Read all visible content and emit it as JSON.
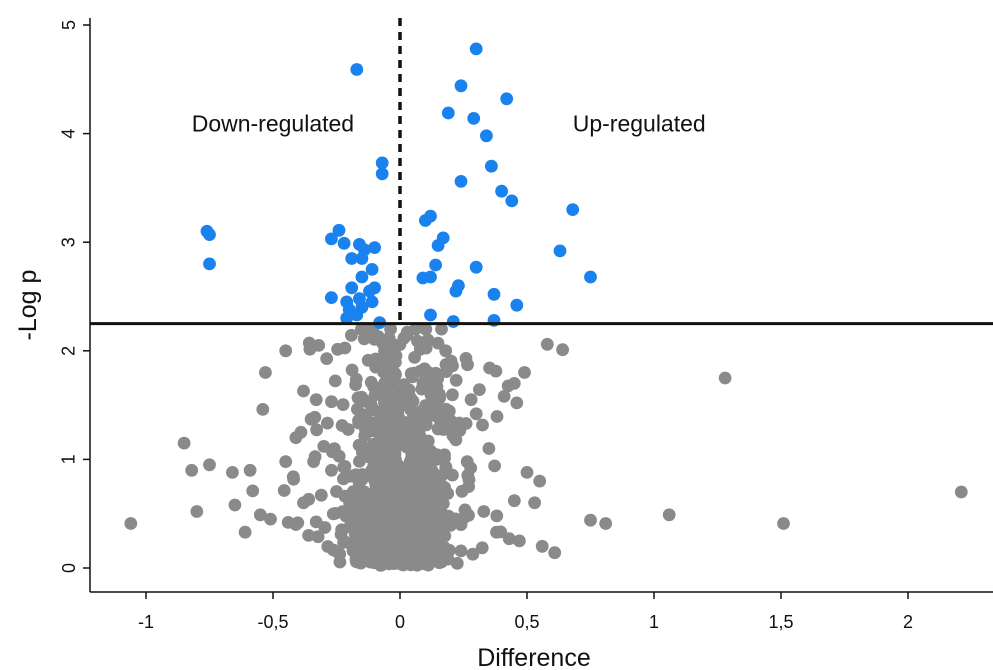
{
  "chart_data": {
    "type": "scatter",
    "title": "",
    "xlabel": "Difference",
    "ylabel": "-Log p",
    "xlim": [
      -1.2,
      2.35
    ],
    "ylim": [
      -0.25,
      5.1
    ],
    "x_ticks": [
      -1,
      -0.5,
      0,
      0.5,
      1,
      1.5,
      2
    ],
    "x_tick_labels": [
      "-1",
      "-0,5",
      "0",
      "0,5",
      "1",
      "1,5",
      "2"
    ],
    "y_ticks": [
      0,
      1,
      2,
      3,
      4,
      5
    ],
    "y_tick_labels": [
      "0",
      "1",
      "2",
      "3",
      "4",
      "5"
    ],
    "grid": false,
    "legend": "none",
    "annotations": [
      {
        "text": "Down-regulated",
        "x": -0.82,
        "y": 4.02
      },
      {
        "text": "Up-regulated",
        "x": 0.68,
        "y": 4.02
      }
    ],
    "threshold_y": 2.25,
    "threshold_x": 0,
    "colors": {
      "significant": "#1a82ef",
      "nonsignificant": "#8a8a8a",
      "lines": "#111111"
    },
    "series": [
      {
        "group": "significant",
        "color": "#1a82ef",
        "points": [
          [
            0.3,
            4.78
          ],
          [
            0.24,
            4.44
          ],
          [
            0.42,
            4.32
          ],
          [
            0.19,
            4.19
          ],
          [
            0.29,
            4.14
          ],
          [
            0.34,
            3.98
          ],
          [
            0.36,
            3.7
          ],
          [
            0.24,
            3.56
          ],
          [
            0.4,
            3.47
          ],
          [
            0.44,
            3.38
          ],
          [
            0.68,
            3.3
          ],
          [
            0.63,
            2.92
          ],
          [
            0.75,
            2.68
          ],
          [
            0.46,
            2.42
          ],
          [
            0.37,
            2.52
          ],
          [
            0.3,
            2.77
          ],
          [
            0.23,
            2.6
          ],
          [
            0.22,
            2.55
          ],
          [
            0.12,
            3.24
          ],
          [
            0.1,
            3.2
          ],
          [
            0.17,
            3.04
          ],
          [
            0.15,
            2.97
          ],
          [
            0.14,
            2.79
          ],
          [
            0.12,
            2.68
          ],
          [
            0.09,
            2.67
          ],
          [
            0.21,
            2.27
          ],
          [
            0.12,
            2.33
          ],
          [
            0.37,
            2.28
          ],
          [
            -0.17,
            4.59
          ],
          [
            -0.07,
            3.73
          ],
          [
            -0.07,
            3.63
          ],
          [
            -0.76,
            3.1
          ],
          [
            -0.75,
            3.07
          ],
          [
            -0.75,
            2.8
          ],
          [
            -0.24,
            3.11
          ],
          [
            -0.27,
            3.03
          ],
          [
            -0.22,
            2.99
          ],
          [
            -0.16,
            2.98
          ],
          [
            -0.14,
            2.93
          ],
          [
            -0.1,
            2.95
          ],
          [
            -0.19,
            2.85
          ],
          [
            -0.15,
            2.85
          ],
          [
            -0.11,
            2.75
          ],
          [
            -0.27,
            2.49
          ],
          [
            -0.19,
            2.58
          ],
          [
            -0.15,
            2.68
          ],
          [
            -0.12,
            2.55
          ],
          [
            -0.1,
            2.58
          ],
          [
            -0.21,
            2.45
          ],
          [
            -0.16,
            2.48
          ],
          [
            -0.11,
            2.45
          ],
          [
            -0.2,
            2.38
          ],
          [
            -0.17,
            2.33
          ],
          [
            -0.15,
            2.4
          ],
          [
            -0.08,
            2.26
          ],
          [
            -0.21,
            2.3
          ]
        ]
      },
      {
        "group": "nonsignificant",
        "color": "#8a8a8a",
        "points": [
          [
            -1.06,
            0.41
          ],
          [
            -0.85,
            1.15
          ],
          [
            -0.82,
            0.9
          ],
          [
            -0.8,
            0.52
          ],
          [
            -0.75,
            0.95
          ],
          [
            -0.66,
            0.88
          ],
          [
            -0.65,
            0.58
          ],
          [
            -0.61,
            0.33
          ],
          [
            -0.59,
            0.9
          ],
          [
            -0.58,
            0.71
          ],
          [
            -0.55,
            0.49
          ],
          [
            -0.54,
            1.46
          ],
          [
            -0.53,
            1.8
          ],
          [
            -0.51,
            0.45
          ],
          [
            -0.45,
            2.0
          ],
          [
            -0.45,
            0.98
          ],
          [
            -0.44,
            0.42
          ],
          [
            -0.42,
            0.84
          ],
          [
            -0.41,
            1.2
          ],
          [
            -0.39,
            1.25
          ],
          [
            -0.38,
            0.6
          ],
          [
            -0.38,
            1.63
          ],
          [
            -0.36,
            0.3
          ],
          [
            -0.35,
            1.37
          ],
          [
            -0.34,
            0.98
          ],
          [
            -0.33,
            1.55
          ],
          [
            -0.32,
            2.05
          ],
          [
            -0.31,
            0.67
          ],
          [
            -0.3,
            1.12
          ],
          [
            0.08,
            0.62
          ],
          [
            0.11,
            2.1
          ],
          [
            0.12,
            1.72
          ],
          [
            0.15,
            1.28
          ],
          [
            0.18,
            0.92
          ],
          [
            0.18,
            2.0
          ],
          [
            0.22,
            1.18
          ],
          [
            0.24,
            0.4
          ],
          [
            0.26,
            1.93
          ],
          [
            0.27,
            0.75
          ],
          [
            0.28,
            1.55
          ],
          [
            0.3,
            1.42
          ],
          [
            0.33,
            0.52
          ],
          [
            0.35,
            1.1
          ],
          [
            0.38,
            0.33
          ],
          [
            0.41,
            1.58
          ],
          [
            0.43,
            0.27
          ],
          [
            0.45,
            0.62
          ],
          [
            0.45,
            1.7
          ],
          [
            0.46,
            1.52
          ],
          [
            0.47,
            0.25
          ],
          [
            0.49,
            1.8
          ],
          [
            0.5,
            0.88
          ],
          [
            0.53,
            0.6
          ],
          [
            0.55,
            0.8
          ],
          [
            0.56,
            0.2
          ],
          [
            0.58,
            2.06
          ],
          [
            0.64,
            2.01
          ],
          [
            0.75,
            0.44
          ],
          [
            0.81,
            0.41
          ],
          [
            1.06,
            0.49
          ],
          [
            1.28,
            1.75
          ],
          [
            1.51,
            0.41
          ],
          [
            2.21,
            0.7
          ]
        ]
      }
    ]
  }
}
